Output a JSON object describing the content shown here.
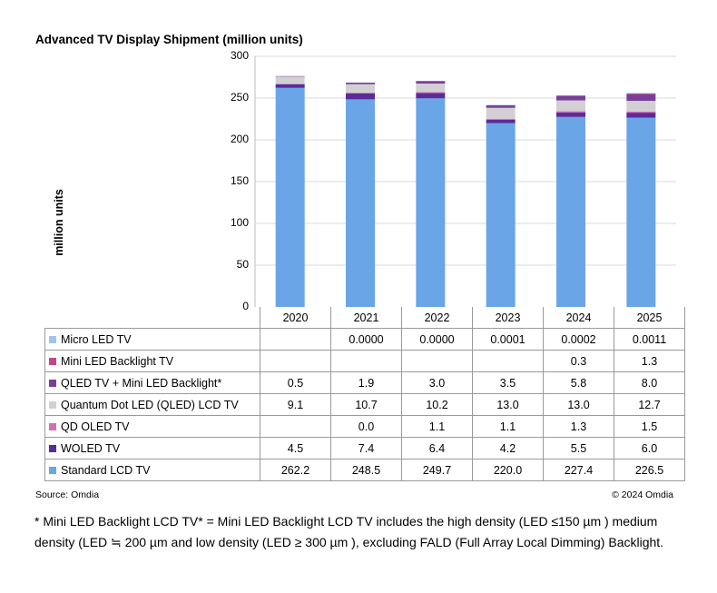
{
  "chart_data": {
    "type": "bar",
    "stacked": true,
    "title": "Advanced TV Display Shipment (million units)",
    "ylabel": "million  units",
    "xlabel": "",
    "ylim": [
      0,
      300
    ],
    "yticks": [
      "0",
      "50",
      "100",
      "150",
      "200",
      "250",
      "300"
    ],
    "grid": true,
    "categories": [
      "2020",
      "2021",
      "2022",
      "2023",
      "2024",
      "2025"
    ],
    "series": [
      {
        "name": "Standard LCD TV",
        "color": "#6aa5e8",
        "labels": [
          "262.2",
          "248.5",
          "249.7",
          "220.0",
          "227.4",
          "226.5"
        ],
        "values": [
          262.2,
          248.5,
          249.7,
          220.0,
          227.4,
          226.5
        ]
      },
      {
        "name": "WOLED TV",
        "color": "#5b2b98",
        "labels": [
          "4.5",
          "7.4",
          "6.4",
          "4.2",
          "5.5",
          "6.0"
        ],
        "values": [
          4.5,
          7.4,
          6.4,
          4.2,
          5.5,
          6.0
        ]
      },
      {
        "name": "QD OLED TV",
        "color": "#d46fb4",
        "labels": [
          "",
          "0.0",
          "1.1",
          "1.1",
          "1.3",
          "1.5"
        ],
        "values": [
          0,
          0.0,
          1.1,
          1.1,
          1.3,
          1.5
        ]
      },
      {
        "name": "Quantum Dot LED (QLED) LCD TV",
        "color": "#d3d0d3",
        "labels": [
          "9.1",
          "10.7",
          "10.2",
          "13.0",
          "13.0",
          "12.7"
        ],
        "values": [
          9.1,
          10.7,
          10.2,
          13.0,
          13.0,
          12.7
        ]
      },
      {
        "name": "QLED TV + Mini LED Backlight*",
        "color": "#7b3f97",
        "labels": [
          "0.5",
          "1.9",
          "3.0",
          "3.5",
          "5.8",
          "8.0"
        ],
        "values": [
          0.5,
          1.9,
          3.0,
          3.5,
          5.8,
          8.0
        ]
      },
      {
        "name": "Mini LED Backlight TV",
        "color": "#c2458e",
        "labels": [
          "",
          "",
          "",
          "",
          "0.3",
          "1.3"
        ],
        "values": [
          0,
          0,
          0,
          0,
          0.3,
          1.3
        ]
      },
      {
        "name": "Micro LED TV",
        "color": "#9fc5ef",
        "labels": [
          "",
          "0.0000",
          "0.0000",
          "0.0001",
          "0.0002",
          "0.0011"
        ],
        "values": [
          0,
          0.0,
          0.0,
          0.0001,
          0.0002,
          0.0011
        ]
      }
    ],
    "source": "Source: Omdia",
    "copyright": "© 2024 Omdia",
    "footnote": "* Mini LED Backlight LCD TV* = Mini LED Backlight LCD TV includes the high density (LED ≤150 µm ) medium density (LED ≒ 200 µm and low density (LED ≥ 300 µm ), excluding FALD (Full Array Local Dimming) Backlight."
  }
}
